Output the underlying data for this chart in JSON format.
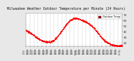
{
  "title": "Milwaukee Weather Outdoor Temperature per Minute (24 Hours)",
  "title_fontsize": 3.5,
  "bg_color": "#e8e8e8",
  "plot_bg": "#ffffff",
  "line_color": "#ff0000",
  "marker_size": 0.3,
  "grid_color": "#aaaaaa",
  "legend_label": "Outdoor Temp",
  "legend_color": "#ff0000",
  "y_label_color": "#333333",
  "x_label_color": "#333333",
  "ylim": [
    14,
    72
  ],
  "yticks": [
    20,
    30,
    40,
    50,
    60,
    70
  ],
  "ytick_labels": [
    "20",
    "30",
    "40",
    "50",
    "60",
    "70"
  ],
  "temperature_profile_hours": [
    0,
    1,
    2,
    3,
    4,
    5,
    6,
    7,
    8,
    9,
    10,
    11,
    12,
    13,
    14,
    15,
    16,
    17,
    18,
    19,
    20,
    21,
    22,
    23
  ],
  "temperature_profile_vals": [
    42,
    38,
    33,
    28,
    24,
    22,
    22,
    25,
    33,
    42,
    52,
    60,
    64,
    63,
    60,
    57,
    52,
    46,
    38,
    28,
    22,
    18,
    16,
    15
  ],
  "x_tick_labels": [
    "01/01\n12:01a",
    "01/01\n01:01a",
    "01/01\n02:01a",
    "01/01\n03:01a",
    "01/01\n04:01a",
    "01/01\n05:01a",
    "01/01\n06:01a",
    "01/01\n07:01a",
    "01/01\n08:01a",
    "01/01\n09:01a",
    "01/01\n10:01a",
    "01/01\n11:01a",
    "01/01\n12:01p",
    "01/01\n01:01p",
    "01/01\n02:01p",
    "01/01\n03:01p",
    "01/01\n04:01p",
    "01/01\n05:01p",
    "01/01\n06:01p",
    "01/01\n07:01p",
    "01/01\n08:01p",
    "01/01\n09:01p",
    "01/01\n10:01p",
    "01/01\n11:01p"
  ]
}
